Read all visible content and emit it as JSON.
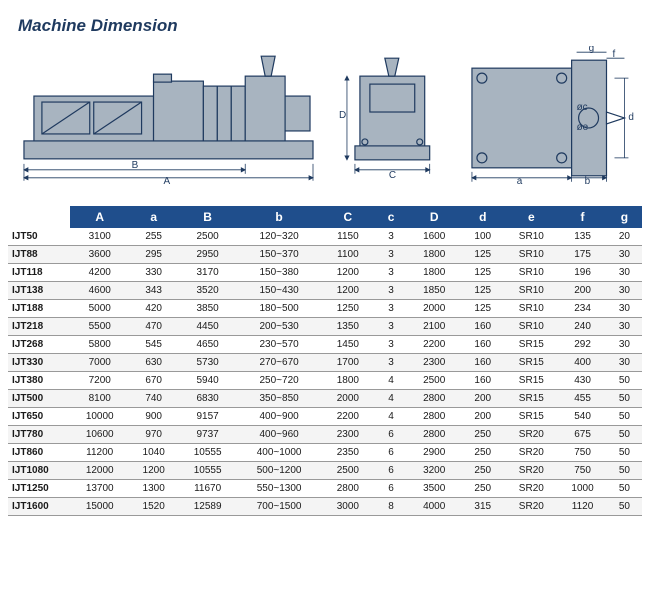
{
  "title": "Machine Dimension",
  "diagram_labels": [
    "A",
    "a",
    "B",
    "b",
    "C",
    "c",
    "D",
    "d",
    "e",
    "f",
    "g"
  ],
  "table": {
    "columns": [
      "",
      "A",
      "a",
      "B",
      "b",
      "C",
      "c",
      "D",
      "d",
      "e",
      "f",
      "g"
    ],
    "col_widths": [
      "46px",
      "44px",
      "36px",
      "44px",
      "62px",
      "40px",
      "24px",
      "40px",
      "32px",
      "40px",
      "36px",
      "26px"
    ],
    "header_bg": "#1f4e8c",
    "header_color": "#ffffff",
    "row_alt_bg": "#f4f4f4",
    "border_color": "#999999",
    "rows": [
      [
        "IJT50",
        "3100",
        "255",
        "2500",
        "120~320",
        "1150",
        "3",
        "1600",
        "100",
        "SR10",
        "135",
        "20"
      ],
      [
        "IJT88",
        "3600",
        "295",
        "2950",
        "150~370",
        "1100",
        "3",
        "1800",
        "125",
        "SR10",
        "175",
        "30"
      ],
      [
        "IJT118",
        "4200",
        "330",
        "3170",
        "150~380",
        "1200",
        "3",
        "1800",
        "125",
        "SR10",
        "196",
        "30"
      ],
      [
        "IJT138",
        "4600",
        "343",
        "3520",
        "150~430",
        "1200",
        "3",
        "1850",
        "125",
        "SR10",
        "200",
        "30"
      ],
      [
        "IJT188",
        "5000",
        "420",
        "3850",
        "180~500",
        "1250",
        "3",
        "2000",
        "125",
        "SR10",
        "234",
        "30"
      ],
      [
        "IJT218",
        "5500",
        "470",
        "4450",
        "200~530",
        "1350",
        "3",
        "2100",
        "160",
        "SR10",
        "240",
        "30"
      ],
      [
        "IJT268",
        "5800",
        "545",
        "4650",
        "230~570",
        "1450",
        "3",
        "2200",
        "160",
        "SR15",
        "292",
        "30"
      ],
      [
        "IJT330",
        "7000",
        "630",
        "5730",
        "270~670",
        "1700",
        "3",
        "2300",
        "160",
        "SR15",
        "400",
        "30"
      ],
      [
        "IJT380",
        "7200",
        "670",
        "5940",
        "250~720",
        "1800",
        "4",
        "2500",
        "160",
        "SR15",
        "430",
        "50"
      ],
      [
        "IJT500",
        "8100",
        "740",
        "6830",
        "350~850",
        "2000",
        "4",
        "2800",
        "200",
        "SR15",
        "455",
        "50"
      ],
      [
        "IJT650",
        "10000",
        "900",
        "9157",
        "400~900",
        "2200",
        "4",
        "2800",
        "200",
        "SR15",
        "540",
        "50"
      ],
      [
        "IJT780",
        "10600",
        "970",
        "9737",
        "400~960",
        "2300",
        "6",
        "2800",
        "250",
        "SR20",
        "675",
        "50"
      ],
      [
        "IJT860",
        "11200",
        "1040",
        "10555",
        "400~1000",
        "2350",
        "6",
        "2900",
        "250",
        "SR20",
        "750",
        "50"
      ],
      [
        "IJT1080",
        "12000",
        "1200",
        "10555",
        "500~1200",
        "2500",
        "6",
        "3200",
        "250",
        "SR20",
        "750",
        "50"
      ],
      [
        "IJT1250",
        "13700",
        "1300",
        "11670",
        "550~1300",
        "2800",
        "6",
        "3500",
        "250",
        "SR20",
        "1000",
        "50"
      ],
      [
        "IJT1600",
        "15000",
        "1520",
        "12589",
        "700~1500",
        "3000",
        "8",
        "4000",
        "315",
        "SR20",
        "1120",
        "50"
      ]
    ]
  },
  "machine_fill": "#a8b4c0",
  "machine_stroke": "#1f3a5f",
  "dim_line_color": "#1f3a5f"
}
